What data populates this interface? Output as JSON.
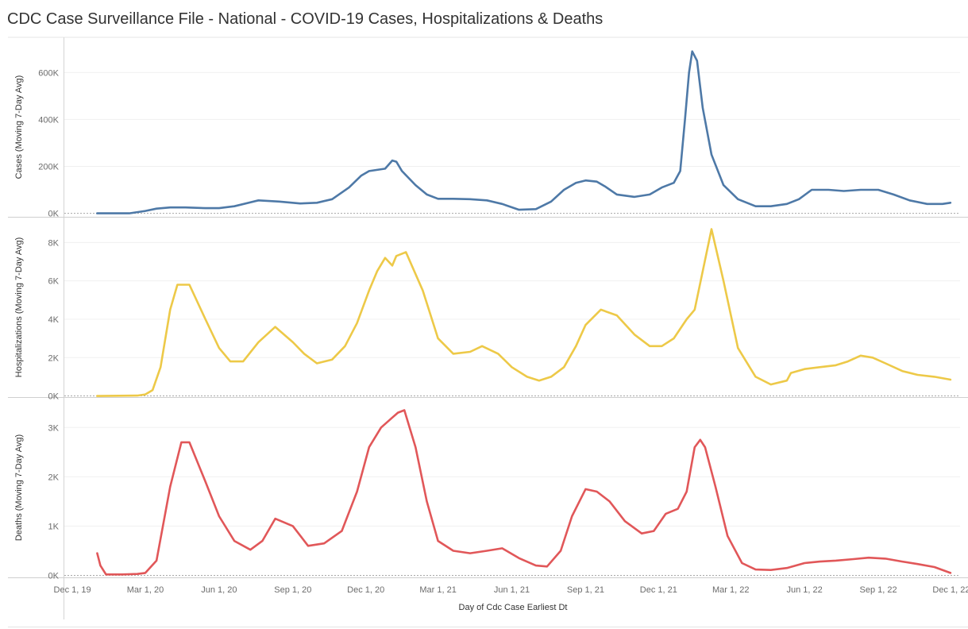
{
  "title": "CDC Case Surveillance File - National - COVID-19 Cases, Hospitalizations & Deaths",
  "chart_data": {
    "type": "line",
    "xlabel": "Day of Cdc Case Earliest Dt",
    "x_ticks": [
      "Dec 1, 19",
      "Mar 1, 20",
      "Jun 1, 20",
      "Sep 1, 20",
      "Dec 1, 20",
      "Mar 1, 21",
      "Jun 1, 21",
      "Sep 1, 21",
      "Dec 1, 21",
      "Mar 1, 22",
      "Jun 1, 22",
      "Sep 1, 22",
      "Dec 1, 22"
    ],
    "x_tick_dates": [
      "2019-12-01",
      "2020-03-01",
      "2020-06-01",
      "2020-09-01",
      "2020-12-01",
      "2021-03-01",
      "2021-06-01",
      "2021-09-01",
      "2021-12-01",
      "2022-03-01",
      "2022-06-01",
      "2022-09-01",
      "2022-12-01"
    ],
    "x_range": [
      "2019-11-21",
      "2022-12-08"
    ],
    "panels": [
      {
        "name": "cases",
        "ylabel": "Cases (Moving 7-Day Avg)",
        "color": "#4e79a7",
        "ylim": [
          -15000,
          750000
        ],
        "y_ticks": [
          0,
          200000,
          400000,
          600000
        ],
        "y_tick_labels": [
          "0K",
          "200K",
          "400K",
          "600K"
        ],
        "dates": [
          "2020-01-01",
          "2020-02-10",
          "2020-03-01",
          "2020-03-15",
          "2020-04-01",
          "2020-04-20",
          "2020-05-15",
          "2020-06-01",
          "2020-06-20",
          "2020-07-20",
          "2020-08-15",
          "2020-09-10",
          "2020-10-01",
          "2020-10-20",
          "2020-11-10",
          "2020-11-25",
          "2020-12-05",
          "2020-12-15",
          "2020-12-25",
          "2021-01-03",
          "2021-01-08",
          "2021-01-15",
          "2021-02-01",
          "2021-02-15",
          "2021-03-01",
          "2021-03-20",
          "2021-04-10",
          "2021-05-01",
          "2021-05-20",
          "2021-06-10",
          "2021-07-01",
          "2021-07-20",
          "2021-08-05",
          "2021-08-20",
          "2021-09-01",
          "2021-09-15",
          "2021-09-25",
          "2021-10-10",
          "2021-11-01",
          "2021-11-20",
          "2021-12-05",
          "2021-12-20",
          "2021-12-28",
          "2022-01-03",
          "2022-01-08",
          "2022-01-12",
          "2022-01-18",
          "2022-01-25",
          "2022-02-05",
          "2022-02-20",
          "2022-03-10",
          "2022-04-01",
          "2022-04-20",
          "2022-05-10",
          "2022-05-25",
          "2022-06-10",
          "2022-07-01",
          "2022-07-20",
          "2022-08-10",
          "2022-09-01",
          "2022-09-20",
          "2022-10-10",
          "2022-11-01",
          "2022-11-20",
          "2022-11-30"
        ],
        "values": [
          0,
          0,
          10000,
          20000,
          25000,
          25000,
          22000,
          22000,
          30000,
          55000,
          50000,
          42000,
          45000,
          60000,
          110000,
          160000,
          180000,
          185000,
          190000,
          225000,
          220000,
          180000,
          120000,
          80000,
          62000,
          62000,
          60000,
          55000,
          40000,
          15000,
          18000,
          50000,
          100000,
          130000,
          140000,
          135000,
          115000,
          80000,
          70000,
          80000,
          110000,
          130000,
          180000,
          400000,
          600000,
          690000,
          650000,
          450000,
          250000,
          120000,
          60000,
          30000,
          30000,
          40000,
          60000,
          100000,
          100000,
          95000,
          100000,
          100000,
          80000,
          55000,
          40000,
          40000,
          45000
        ]
      },
      {
        "name": "hospitalizations",
        "ylabel": "Hospitalizations (Moving 7-Day Avg)",
        "color": "#edc948",
        "ylim": [
          -60,
          9300
        ],
        "y_ticks": [
          0,
          2000,
          4000,
          6000,
          8000
        ],
        "y_tick_labels": [
          "0K",
          "2K",
          "4K",
          "6K",
          "8K"
        ],
        "dates": [
          "2020-01-01",
          "2020-02-20",
          "2020-03-01",
          "2020-03-10",
          "2020-03-20",
          "2020-04-01",
          "2020-04-10",
          "2020-04-25",
          "2020-05-15",
          "2020-06-01",
          "2020-06-15",
          "2020-07-01",
          "2020-07-20",
          "2020-08-10",
          "2020-09-01",
          "2020-09-15",
          "2020-10-01",
          "2020-10-20",
          "2020-11-05",
          "2020-11-20",
          "2020-12-05",
          "2020-12-15",
          "2020-12-25",
          "2021-01-03",
          "2021-01-08",
          "2021-01-20",
          "2021-02-10",
          "2021-03-01",
          "2021-03-20",
          "2021-04-10",
          "2021-04-25",
          "2021-05-15",
          "2021-06-01",
          "2021-06-20",
          "2021-07-05",
          "2021-07-20",
          "2021-08-05",
          "2021-08-20",
          "2021-09-01",
          "2021-09-20",
          "2021-10-10",
          "2021-11-01",
          "2021-11-20",
          "2021-12-05",
          "2021-12-20",
          "2021-12-28",
          "2022-01-05",
          "2022-01-15",
          "2022-01-25",
          "2022-02-05",
          "2022-02-20",
          "2022-03-10",
          "2022-04-01",
          "2022-04-20",
          "2022-05-10",
          "2022-05-15",
          "2022-06-01",
          "2022-06-20",
          "2022-07-10",
          "2022-07-25",
          "2022-08-10",
          "2022-08-25",
          "2022-09-10",
          "2022-10-01",
          "2022-10-20",
          "2022-11-10",
          "2022-11-30"
        ],
        "values": [
          0,
          20,
          80,
          300,
          1500,
          4500,
          5800,
          5800,
          4000,
          2500,
          1800,
          1800,
          2800,
          3600,
          2800,
          2200,
          1700,
          1900,
          2600,
          3800,
          5500,
          6500,
          7200,
          6800,
          7300,
          7500,
          5500,
          3000,
          2200,
          2300,
          2600,
          2200,
          1500,
          1000,
          800,
          1000,
          1500,
          2600,
          3700,
          4500,
          4200,
          3200,
          2600,
          2600,
          3000,
          3500,
          4000,
          4500,
          6500,
          8700,
          6000,
          2500,
          1000,
          600,
          800,
          1200,
          1400,
          1500,
          1600,
          1800,
          2100,
          2000,
          1700,
          1300,
          1100,
          1000,
          850
        ]
      },
      {
        "name": "deaths",
        "ylabel": "Deaths (Moving 7-Day Avg)",
        "color": "#e15759",
        "ylim": [
          -40,
          3600
        ],
        "y_ticks": [
          0,
          1000,
          2000,
          3000
        ],
        "y_tick_labels": [
          "0K",
          "1K",
          "2K",
          "3K"
        ],
        "dates": [
          "2020-01-01",
          "2020-01-05",
          "2020-01-12",
          "2020-02-01",
          "2020-02-20",
          "2020-03-01",
          "2020-03-15",
          "2020-04-01",
          "2020-04-15",
          "2020-04-25",
          "2020-05-15",
          "2020-06-01",
          "2020-06-20",
          "2020-07-10",
          "2020-07-25",
          "2020-08-10",
          "2020-09-01",
          "2020-09-20",
          "2020-10-10",
          "2020-11-01",
          "2020-11-20",
          "2020-12-05",
          "2020-12-20",
          "2021-01-03",
          "2021-01-10",
          "2021-01-18",
          "2021-02-01",
          "2021-02-15",
          "2021-03-01",
          "2021-03-20",
          "2021-04-10",
          "2021-05-01",
          "2021-05-20",
          "2021-06-10",
          "2021-07-01",
          "2021-07-15",
          "2021-08-01",
          "2021-08-15",
          "2021-09-01",
          "2021-09-15",
          "2021-10-01",
          "2021-10-20",
          "2021-11-10",
          "2021-11-25",
          "2021-12-10",
          "2021-12-25",
          "2022-01-05",
          "2022-01-15",
          "2022-01-22",
          "2022-01-28",
          "2022-02-10",
          "2022-02-25",
          "2022-03-15",
          "2022-04-01",
          "2022-04-20",
          "2022-05-10",
          "2022-06-01",
          "2022-06-20",
          "2022-07-10",
          "2022-08-01",
          "2022-08-20",
          "2022-09-10",
          "2022-10-01",
          "2022-10-20",
          "2022-11-10",
          "2022-11-30"
        ],
        "values": [
          450,
          200,
          20,
          20,
          30,
          50,
          300,
          1800,
          2700,
          2700,
          1900,
          1200,
          700,
          520,
          700,
          1150,
          1000,
          600,
          650,
          900,
          1700,
          2600,
          3000,
          3200,
          3300,
          3350,
          2600,
          1500,
          700,
          500,
          450,
          500,
          550,
          350,
          200,
          180,
          500,
          1200,
          1750,
          1700,
          1500,
          1100,
          850,
          900,
          1250,
          1350,
          1700,
          2600,
          2750,
          2600,
          1800,
          800,
          250,
          120,
          110,
          150,
          250,
          280,
          300,
          330,
          360,
          340,
          280,
          230,
          170,
          50
        ]
      }
    ]
  }
}
